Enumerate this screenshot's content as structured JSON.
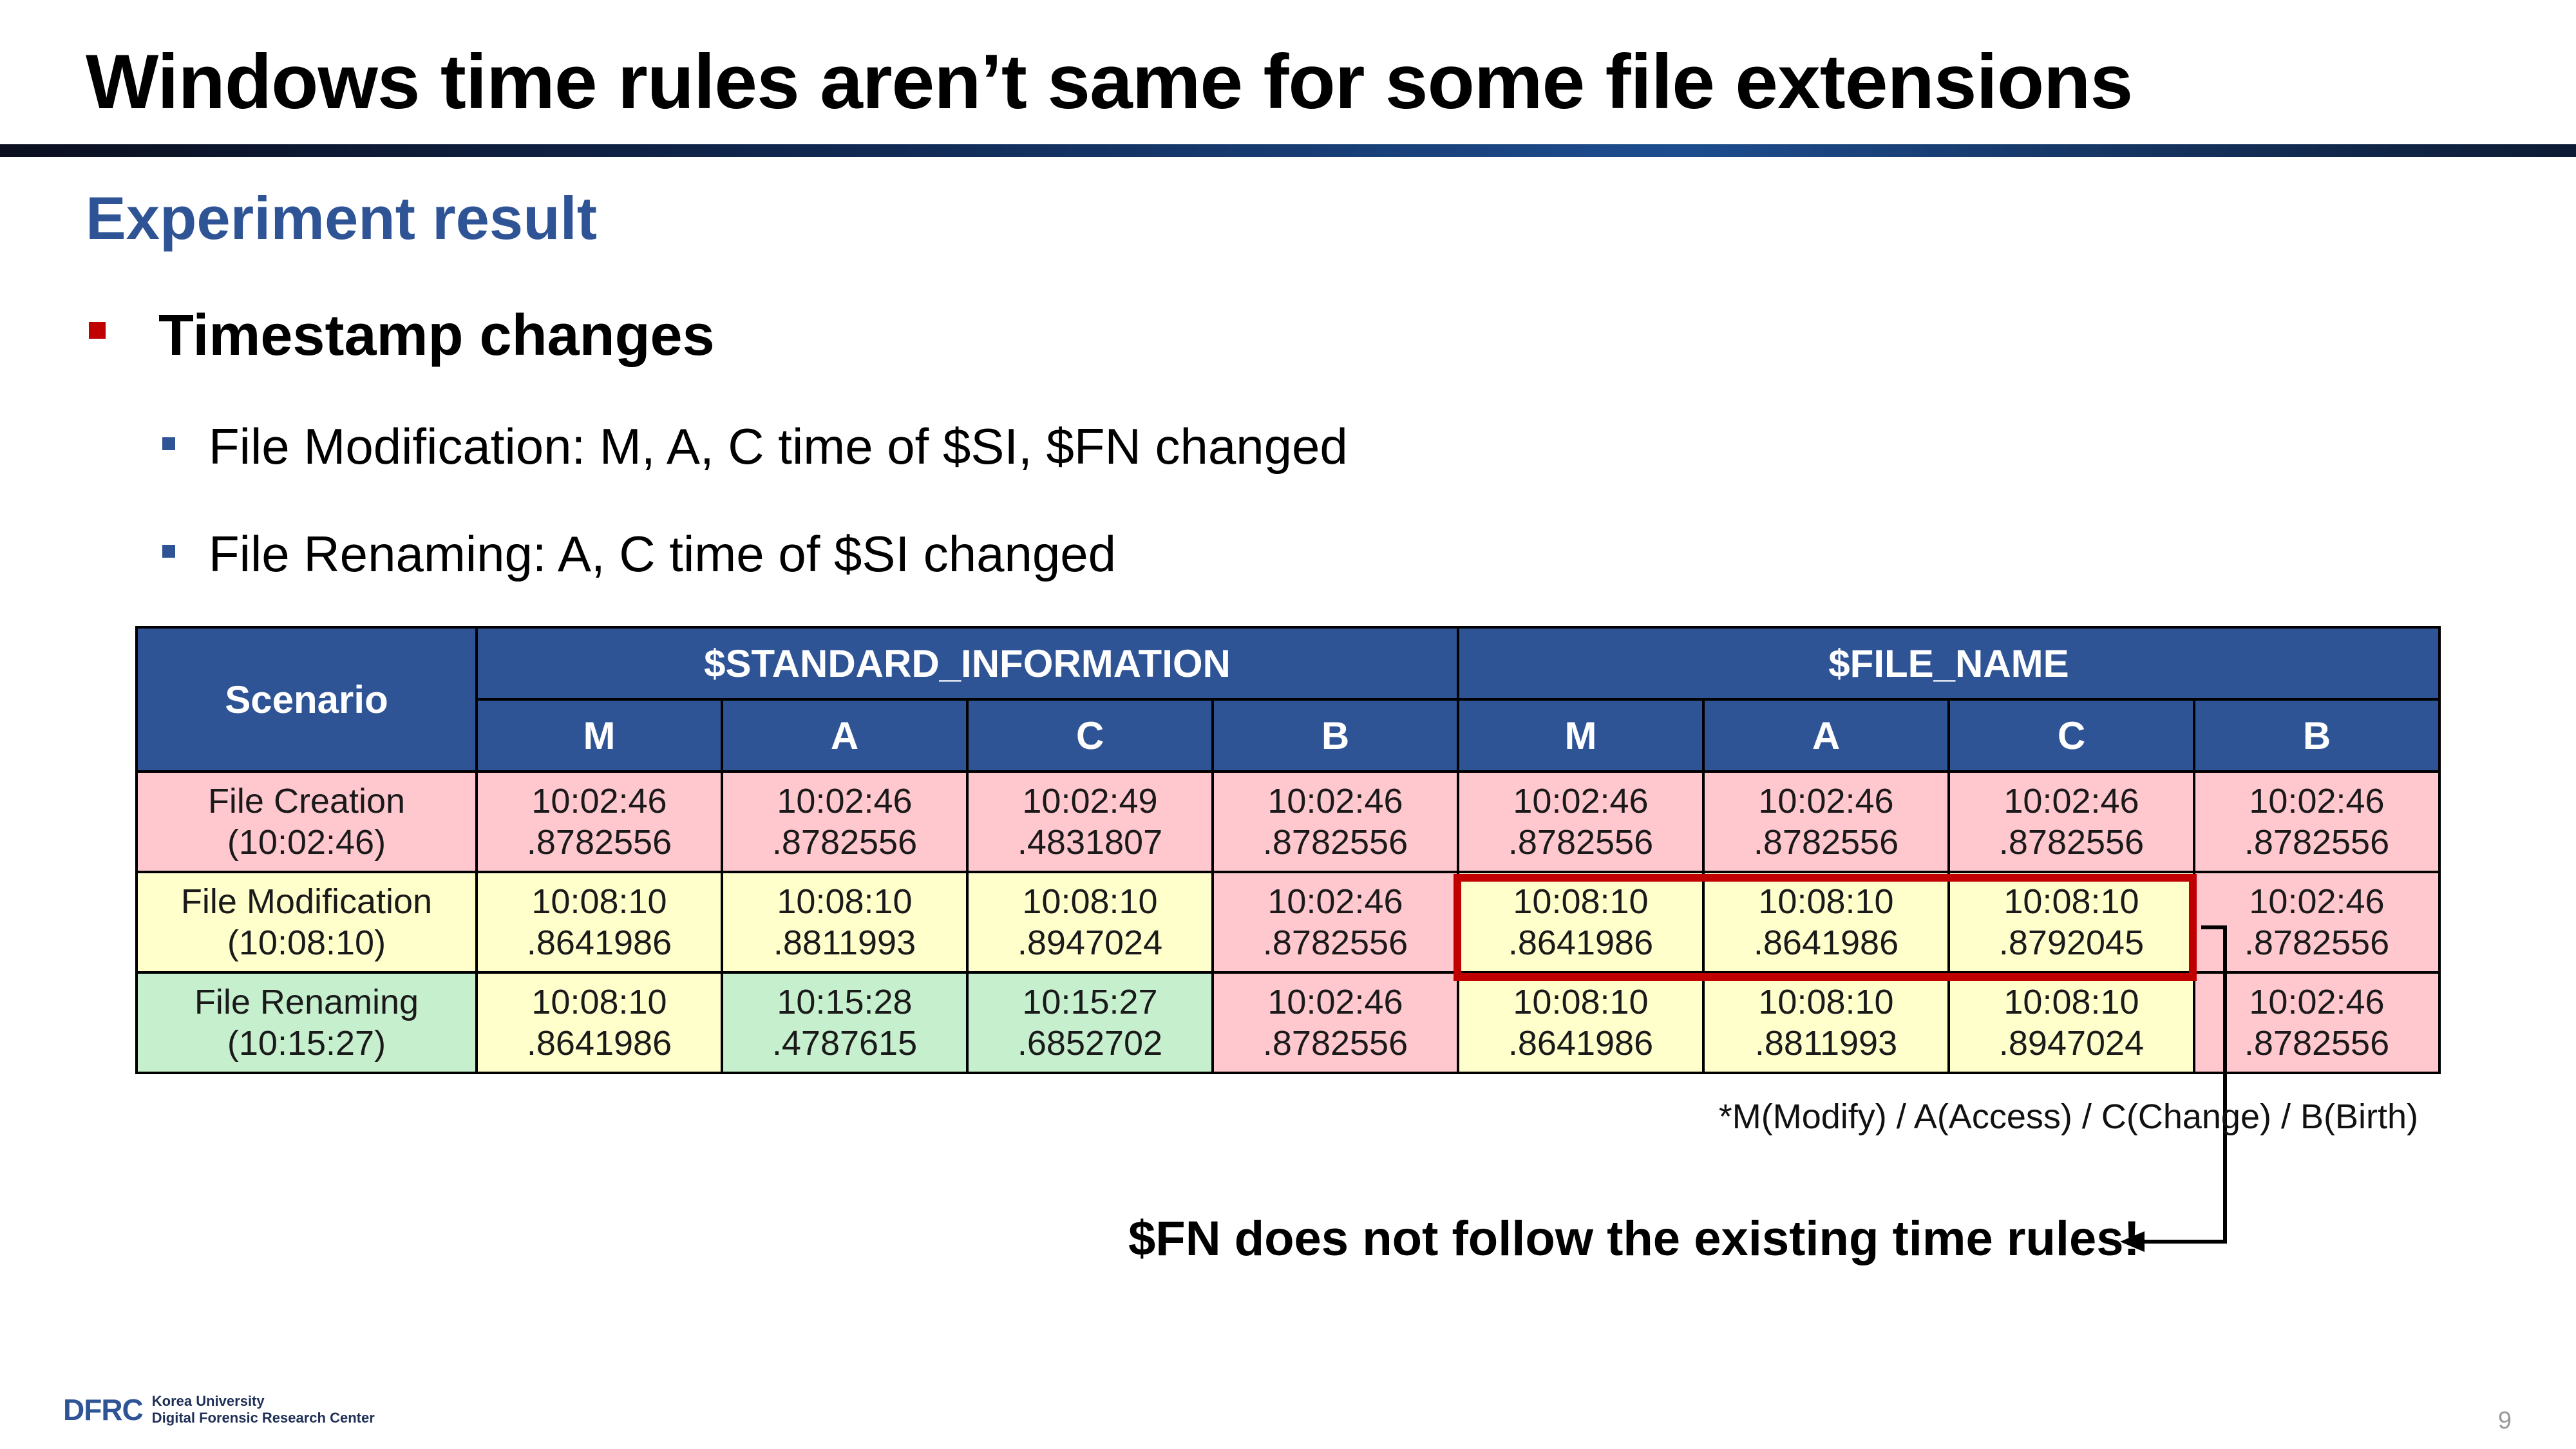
{
  "slide": {
    "title": "Windows time rules aren’t same for some file extensions",
    "subtitle": "Experiment result",
    "bullet": "Timestamp changes",
    "sub_bullets": [
      "File Modification: M, A, C time of $SI, $FN changed",
      "File Renaming: A, C time of $SI changed"
    ],
    "page_number": "9"
  },
  "table": {
    "scenario_header": "Scenario",
    "groups": [
      "$STANDARD_INFORMATION",
      "$FILE_NAME"
    ],
    "columns": [
      "M",
      "A",
      "C",
      "B",
      "M",
      "A",
      "C",
      "B"
    ],
    "rows": [
      {
        "scenario": [
          "File Creation",
          "(10:02:46)"
        ],
        "cells": [
          [
            "10:02:46",
            ".8782556"
          ],
          [
            "10:02:46",
            ".8782556"
          ],
          [
            "10:02:49",
            ".4831807"
          ],
          [
            "10:02:46",
            ".8782556"
          ],
          [
            "10:02:46",
            ".8782556"
          ],
          [
            "10:02:46",
            ".8782556"
          ],
          [
            "10:02:46",
            ".8782556"
          ],
          [
            "10:02:46",
            ".8782556"
          ]
        ]
      },
      {
        "scenario": [
          "File Modification",
          "(10:08:10)"
        ],
        "cells": [
          [
            "10:08:10",
            ".8641986"
          ],
          [
            "10:08:10",
            ".8811993"
          ],
          [
            "10:08:10",
            ".8947024"
          ],
          [
            "10:02:46",
            ".8782556"
          ],
          [
            "10:08:10",
            ".8641986"
          ],
          [
            "10:08:10",
            ".8641986"
          ],
          [
            "10:08:10",
            ".8792045"
          ],
          [
            "10:02:46",
            ".8782556"
          ]
        ]
      },
      {
        "scenario": [
          "File Renaming",
          "(10:15:27)"
        ],
        "cells": [
          [
            "10:08:10",
            ".8641986"
          ],
          [
            "10:15:28",
            ".4787615"
          ],
          [
            "10:15:27",
            ".6852702"
          ],
          [
            "10:02:46",
            ".8782556"
          ],
          [
            "10:08:10",
            ".8641986"
          ],
          [
            "10:08:10",
            ".8811993"
          ],
          [
            "10:08:10",
            ".8947024"
          ],
          [
            "10:02:46",
            ".8782556"
          ]
        ]
      }
    ],
    "footnote": "*M(Modify) / A(Access) / C(Change) / B(Birth)"
  },
  "callout": "$FN does not follow the existing time rules!",
  "logo": {
    "mark": "DFRC",
    "line1": "Korea University",
    "line2": "Digital Forensic Research Center"
  },
  "colors": {
    "accent_blue": "#2f5496",
    "header_fill": "#2f5496",
    "pink": "#ffc7ce",
    "yellow": "#ffffcc",
    "green": "#c6efce",
    "highlight_red": "#c00000"
  }
}
